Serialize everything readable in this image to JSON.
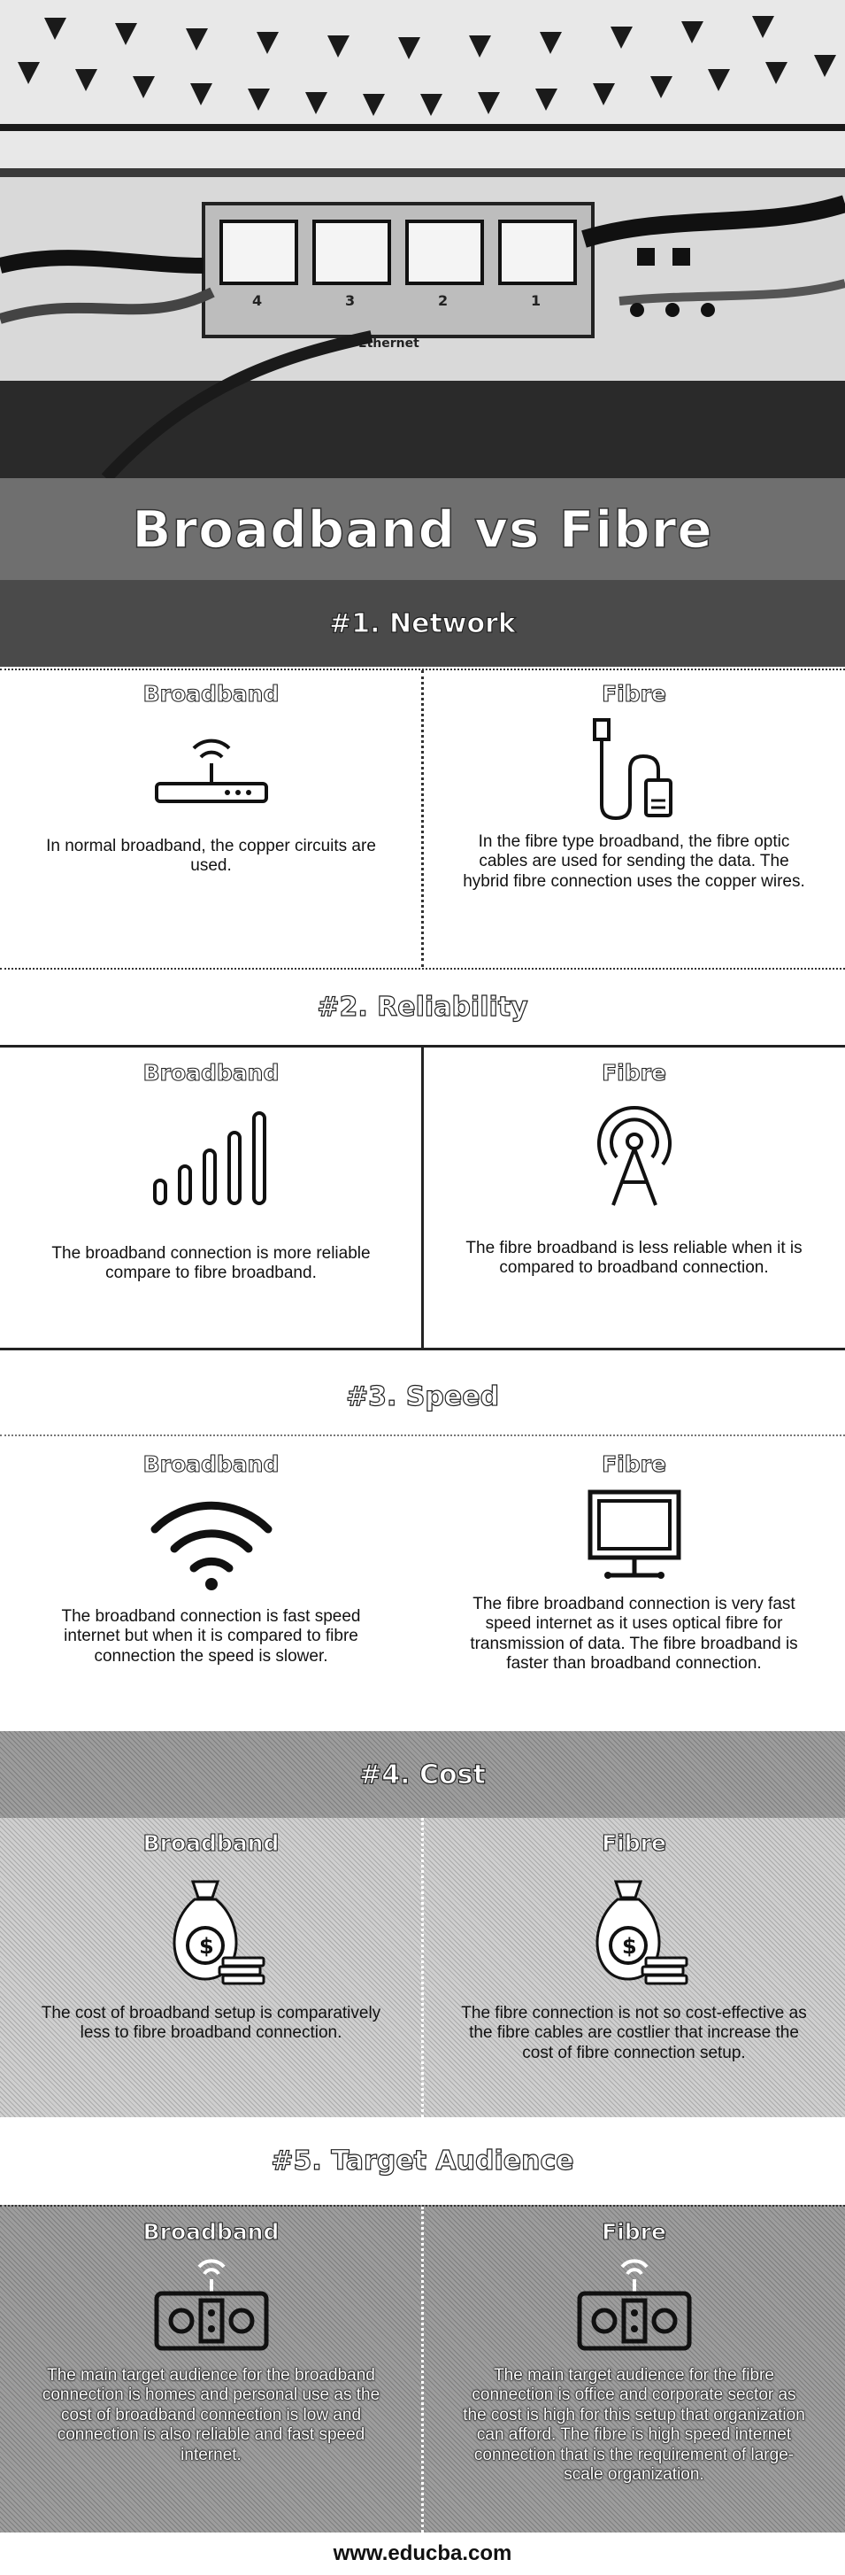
{
  "title": "Broadband vs Fibre",
  "footer": "www.educba.com",
  "column_labels": {
    "left": "Broadband",
    "right": "Fibre"
  },
  "sections": [
    {
      "heading": "#1. Network",
      "broadband_text": "In normal broadband, the copper circuits are used.",
      "fibre_text": "In the fibre type broadband, the fibre optic cables are used for sending the data. The hybrid fibre connection uses the copper wires.",
      "broadband_icon": "router-icon",
      "fibre_icon": "fibre-cable-icon"
    },
    {
      "heading": "#2. Reliability",
      "broadband_text": "The broadband connection is more reliable compare to fibre broadband.",
      "fibre_text": "The fibre broadband is less reliable when it is compared to broadband connection.",
      "broadband_icon": "signal-bars-icon",
      "fibre_icon": "antenna-tower-icon"
    },
    {
      "heading": "#3. Speed",
      "broadband_text": "The broadband connection is fast speed internet but when it is compared to fibre connection the speed is slower.",
      "fibre_text": "The fibre broadband connection is very fast speed internet as it uses optical fibre for transmission of data. The fibre broadband is faster than broadband connection.",
      "broadband_icon": "wifi-icon",
      "fibre_icon": "monitor-icon"
    },
    {
      "heading": "#4. Cost",
      "broadband_text": "The cost of broadband setup is comparatively less to fibre broadband connection.",
      "fibre_text": "The fibre connection is not so cost-effective as the fibre cables are costlier that increase the cost of fibre connection setup.",
      "broadband_icon": "money-bag-icon",
      "fibre_icon": "money-bag-icon"
    },
    {
      "heading": "#5. Target Audience",
      "broadband_text": "The main target audience for the broadband connection is homes and personal use as the cost of broadband connection is low and connection is also reliable and fast speed internet.",
      "fibre_text": "The main target audience for the fibre connection is office and corporate sector as the cost is high for this setup that organization can afford. The fibre is high speed internet connection that is the requirement of large-scale organization.",
      "broadband_icon": "modem-icon",
      "fibre_icon": "modem-icon"
    }
  ],
  "hero": {
    "port_labels": [
      "4",
      "3",
      "2",
      "1"
    ],
    "port_caption": "Ethernet",
    "icon": "ethernet-switch-photo"
  },
  "colors": {
    "title_band": "#6f6f6f",
    "header_dark": "#4a4a4a",
    "hatch_light": "#cfcfcf",
    "hatch_dark": "#9d9d9d"
  }
}
